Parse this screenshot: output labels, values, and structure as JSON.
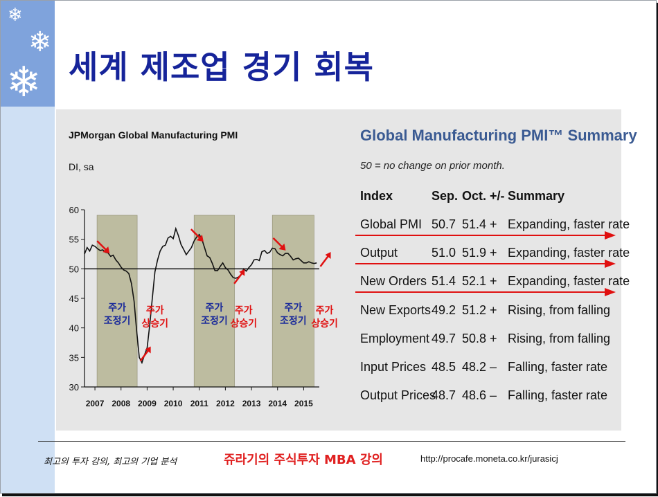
{
  "slide": {
    "title": "세계 제조업 경기 회복"
  },
  "chart_data": {
    "type": "line",
    "title": "JPMorgan Global Manufacturing PMI",
    "unit": "DI, sa",
    "ylim": [
      30,
      60
    ],
    "yticks": [
      30,
      35,
      40,
      45,
      50,
      55,
      60
    ],
    "xlim": [
      2006.6,
      2015.6
    ],
    "x_tick_labels": [
      "2007",
      "2008",
      "2009",
      "2010",
      "2011",
      "2012",
      "2013",
      "2014",
      "2015"
    ],
    "x_tick_positions": [
      2007,
      2008,
      2009,
      2010,
      2011,
      2012,
      2013,
      2014,
      2015
    ],
    "reference_line": 50,
    "series": [
      {
        "x": [
          2006.6,
          2006.7,
          2006.8,
          2006.9,
          2007.0,
          2007.1,
          2007.2,
          2007.3,
          2007.4,
          2007.5,
          2007.6,
          2007.7,
          2007.8,
          2007.9,
          2008.0,
          2008.1,
          2008.2,
          2008.3,
          2008.4,
          2008.5,
          2008.6,
          2008.7,
          2008.8,
          2008.9,
          2009.0,
          2009.1,
          2009.2,
          2009.3,
          2009.4,
          2009.5,
          2009.6,
          2009.7,
          2009.8,
          2009.9,
          2010.0,
          2010.1,
          2010.2,
          2010.3,
          2010.4,
          2010.5,
          2010.6,
          2010.7,
          2010.8,
          2010.9,
          2011.0,
          2011.1,
          2011.2,
          2011.3,
          2011.4,
          2011.5,
          2011.6,
          2011.7,
          2011.8,
          2011.9,
          2012.0,
          2012.1,
          2012.2,
          2012.3,
          2012.4,
          2012.5,
          2012.6,
          2012.7,
          2012.8,
          2012.9,
          2013.0,
          2013.1,
          2013.2,
          2013.3,
          2013.4,
          2013.5,
          2013.6,
          2013.7,
          2013.8,
          2013.9,
          2014.0,
          2014.1,
          2014.2,
          2014.3,
          2014.4,
          2014.5,
          2014.6,
          2014.7,
          2014.8,
          2014.9,
          2015.0,
          2015.1,
          2015.2,
          2015.3,
          2015.4,
          2015.5
        ],
        "y": [
          52.5,
          53.6,
          53.0,
          54.0,
          53.8,
          53.4,
          53.1,
          53.2,
          52.8,
          52.7,
          52.1,
          52.3,
          51.5,
          51.0,
          50.3,
          49.8,
          49.6,
          49.2,
          47.5,
          44.5,
          39.5,
          35.0,
          34.1,
          35.4,
          36.6,
          40.5,
          45.0,
          49.5,
          51.5,
          53.0,
          53.8,
          54.0,
          55.2,
          55.5,
          55.1,
          56.8,
          55.6,
          54.1,
          53.3,
          52.4,
          53.0,
          53.6,
          54.7,
          55.4,
          55.8,
          55.0,
          53.6,
          52.2,
          51.9,
          50.9,
          49.7,
          49.7,
          50.4,
          51.0,
          50.2,
          49.8,
          49.1,
          48.5,
          48.4,
          48.6,
          49.0,
          50.0,
          49.6,
          50.2,
          50.7,
          51.5,
          51.6,
          51.4,
          52.9,
          53.1,
          52.6,
          52.8,
          53.5,
          53.4,
          52.7,
          52.4,
          52.2,
          52.6,
          52.6,
          52.1,
          51.5,
          51.7,
          51.8,
          51.4,
          51.0,
          51.0,
          51.2,
          51.0,
          50.9,
          51.0
        ]
      }
    ],
    "shaded_periods": [
      {
        "start": 2007.08,
        "end": 2008.62,
        "label_line1": "주가",
        "label_line2": "조정기"
      },
      {
        "start": 2010.8,
        "end": 2012.35,
        "label_line1": "주가",
        "label_line2": "조정기"
      },
      {
        "start": 2013.8,
        "end": 2015.4,
        "label_line1": "주가",
        "label_line2": "조정기"
      }
    ],
    "rise_labels": [
      {
        "x": 2009.3,
        "label_line1": "주가",
        "label_line2": "상승기"
      },
      {
        "x": 2012.7,
        "label_line1": "주가",
        "label_line2": "상승기"
      },
      {
        "x": 2015.8,
        "label_line1": "주가",
        "label_line2": "상승기"
      }
    ],
    "arrows": [
      {
        "x": 2007.35,
        "y": 53.3,
        "dir": "down"
      },
      {
        "x": 2008.9,
        "y": 35.8,
        "dir": "up"
      },
      {
        "x": 2010.95,
        "y": 55.3,
        "dir": "down"
      },
      {
        "x": 2012.5,
        "y": 48.9,
        "dir": "up"
      },
      {
        "x": 2014.1,
        "y": 53.8,
        "dir": "down"
      },
      {
        "x": 2015.8,
        "y": 51.8,
        "dir": "up"
      }
    ],
    "colors": {
      "line": "#111111",
      "shade": "#bdbca0",
      "arrow": "#e01010",
      "adjust_text": "#1a2a9a",
      "rise_text": "#e01010"
    }
  },
  "summary": {
    "title": "Global Manufacturing PMI™ Summary",
    "note": "50 = no change on prior month.",
    "headers": {
      "index": "Index",
      "sep": "Sep.",
      "oct": "Oct.",
      "pm": "+/-",
      "summary": "Summary"
    },
    "rows": [
      {
        "index": "Global PMI",
        "sep": "50.7",
        "oct": "51.4",
        "pm": "+",
        "summary": "Expanding, faster rate"
      },
      {
        "index": "Output",
        "sep": "51.0",
        "oct": "51.9",
        "pm": "+",
        "summary": "Expanding, faster rate"
      },
      {
        "index": "New Orders",
        "sep": "51.4",
        "oct": "52.1",
        "pm": "+",
        "summary": "Expanding, faster rate"
      },
      {
        "index": "New Exports",
        "sep": "49.2",
        "oct": "51.2",
        "pm": "+",
        "summary": "Rising, from falling"
      },
      {
        "index": "Employment",
        "sep": "49.7",
        "oct": "50.8",
        "pm": "+",
        "summary": "Rising, from falling"
      },
      {
        "index": "Input Prices",
        "sep": "48.5",
        "oct": "48.2",
        "pm": "–",
        "summary": "Falling, faster rate"
      },
      {
        "index": "Output Prices",
        "sep": "48.7",
        "oct": "48.6",
        "pm": "–",
        "summary": "Falling, faster rate"
      }
    ],
    "highlighted_rows": [
      0,
      1,
      2
    ]
  },
  "footer": {
    "left": "최고의 투자 강의, 최고의 기업 분석",
    "mid": "쥬라기의 주식투자 MBA 강의",
    "url": "http://procafe.moneta.co.kr/jurasicj"
  }
}
